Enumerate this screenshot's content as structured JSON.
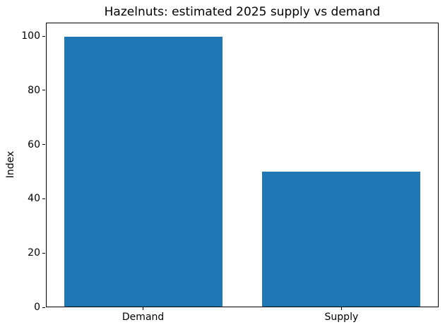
{
  "chart_data": {
    "type": "bar",
    "title": "Hazelnuts: estimated 2025 supply vs demand",
    "categories": [
      "Demand",
      "Supply"
    ],
    "values": [
      100,
      50
    ],
    "xlabel": "",
    "ylabel": "Index",
    "ylim": [
      0,
      105
    ],
    "yticks": [
      0,
      20,
      40,
      60,
      80,
      100
    ],
    "bar_color": "#1f77b4",
    "axis_color": "#000000",
    "grid": false,
    "legend_position": "none"
  }
}
